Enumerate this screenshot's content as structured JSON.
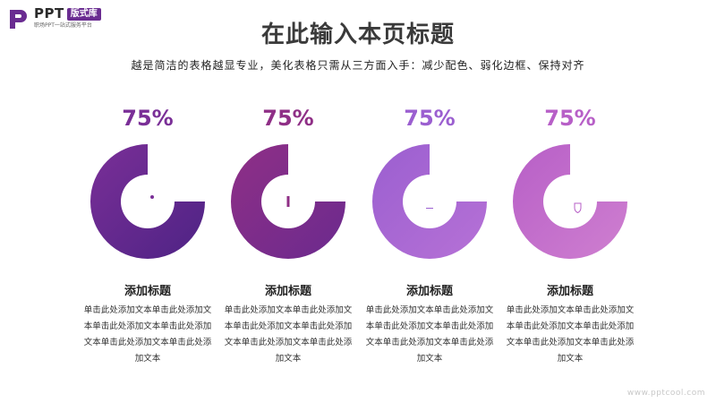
{
  "brand": {
    "name": "PPT",
    "badge": "版式库",
    "tagline": "职场PPT一站式服务平台",
    "logo_color": "#6a2c91"
  },
  "header": {
    "title": "在此输入本页标题",
    "subtitle": "越是简洁的表格越显专业，美化表格只需从三方面入手：减少配色、弱化边框、保持对齐"
  },
  "items": [
    {
      "percent_label": "75%",
      "percent_value": 0.75,
      "title": "添加标题",
      "description": "单击此处添加文本单击此处添加文本单击此处添加文本单击此处添加文本单击此处添加文本单击此处添加文本",
      "icon": "price-tag-icon",
      "colors": [
        "#7a2f97",
        "#4e2385"
      ]
    },
    {
      "percent_label": "75%",
      "percent_value": 0.75,
      "title": "添加标题",
      "description": "单击此处添加文本单击此处添加文本单击此处添加文本单击此处添加文本单击此处添加文本单击此处添加文本",
      "icon": "shield-icon",
      "colors": [
        "#8f2f86",
        "#6b2a8e"
      ]
    },
    {
      "percent_label": "75%",
      "percent_value": 0.75,
      "title": "添加标题",
      "description": "单击此处添加文本单击此处添加文本单击此处添加文本单击此处添加文本单击此处添加文本单击此处添加文本",
      "icon": "lightbulb-icon",
      "colors": [
        "#9b5fd0",
        "#b671d6"
      ]
    },
    {
      "percent_label": "75%",
      "percent_value": 0.75,
      "title": "添加标题",
      "description": "单击此处添加文本单击此处添加文本单击此处添加文本单击此处添加文本单击此处添加文本单击此处添加文本",
      "icon": "user-shield-icon",
      "colors": [
        "#b75fc7",
        "#cf7fd0"
      ]
    }
  ],
  "watermark": "www.pptcool.com"
}
